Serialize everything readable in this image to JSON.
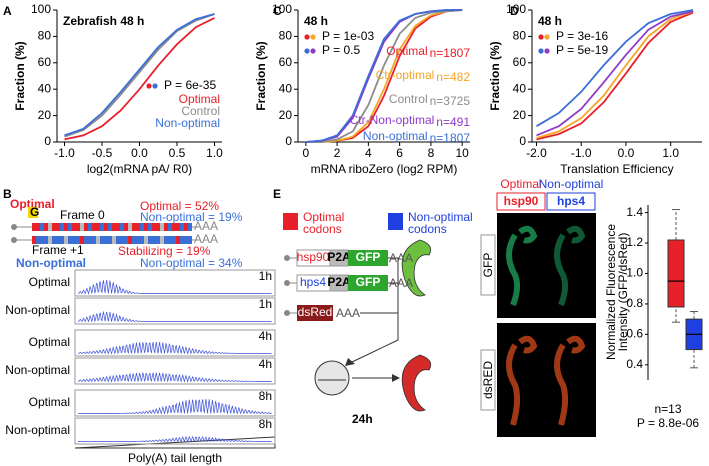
{
  "chart_data": [
    {
      "label": "A",
      "type": "line",
      "title": "Zebrafish 48 h",
      "xlabel": "log2(mRNA pA/ R0)",
      "ylabel": "Fraction (%)",
      "x": [
        -1.0,
        -0.75,
        -0.5,
        -0.25,
        0,
        0.25,
        0.5,
        0.75,
        1.0
      ],
      "xlim": [
        -1.1,
        1.1
      ],
      "xticks": [
        {
          "value": -1,
          "label": "-1.0"
        },
        {
          "value": -0.5,
          "label": "-0.5"
        },
        {
          "value": 0,
          "label": "0.0"
        },
        {
          "value": 0.5,
          "label": "0.5"
        },
        {
          "value": 1,
          "label": "1.0"
        }
      ],
      "ylim": [
        0,
        100
      ],
      "yticks": [
        0,
        20,
        40,
        60,
        80,
        100
      ],
      "annotations": [
        {
          "text": "P = 6e-35",
          "colors": [
            "#e8202a",
            "#3a6fd8"
          ]
        }
      ],
      "series": [
        {
          "name": "Optimal",
          "color": "#e8202a",
          "values": [
            2,
            5,
            12,
            24,
            40,
            58,
            74,
            87,
            94
          ]
        },
        {
          "name": "Control",
          "color": "#8c8c8c",
          "values": [
            4,
            9,
            20,
            36,
            53,
            70,
            84,
            92,
            97
          ]
        },
        {
          "name": "Non-optimal",
          "color": "#3a6fd8",
          "values": [
            5,
            10,
            22,
            38,
            55,
            72,
            85,
            93,
            97
          ]
        }
      ]
    },
    {
      "label": "C",
      "type": "line",
      "title": "48 h",
      "xlabel": "mRNA riboZero (log2 RPM)",
      "ylabel": "Fraction (%)",
      "x": [
        0,
        1,
        2,
        3,
        4,
        5,
        6,
        7,
        8,
        9,
        10
      ],
      "xlim": [
        -0.5,
        10.5
      ],
      "xticks": [
        0,
        2,
        4,
        6,
        8,
        10
      ],
      "ylim": [
        0,
        100
      ],
      "yticks": [
        0,
        20,
        40,
        60,
        80,
        100
      ],
      "annotations": [
        {
          "text": "P = 1e-03",
          "colors": [
            "#e8202a",
            "#f5a623"
          ]
        },
        {
          "text": "P = 0.5",
          "colors": [
            "#3a6fd8",
            "#8e3bc9"
          ]
        }
      ],
      "series": [
        {
          "name": "Optimal",
          "n": "n=1807",
          "color": "#e8202a",
          "values": [
            0,
            0,
            1,
            3,
            12,
            35,
            65,
            86,
            95,
            99,
            100
          ]
        },
        {
          "name": "Ctr-optimal",
          "n": "n=482",
          "color": "#f5a623",
          "values": [
            0,
            0,
            1,
            4,
            15,
            40,
            70,
            88,
            96,
            99,
            100
          ]
        },
        {
          "name": "Control",
          "n": "n=3725",
          "color": "#8c8c8c",
          "values": [
            0,
            0,
            2,
            8,
            28,
            58,
            82,
            94,
            98,
            99,
            100
          ]
        },
        {
          "name": "Ctr-Non-optimal",
          "n": "n=491",
          "color": "#8e3bc9",
          "values": [
            0,
            1,
            4,
            18,
            48,
            76,
            91,
            97,
            99,
            100,
            100
          ]
        },
        {
          "name": "Non-optimal",
          "n": "n=1807",
          "color": "#3a6fd8",
          "values": [
            0,
            1,
            5,
            20,
            50,
            78,
            92,
            97,
            99,
            100,
            100
          ]
        }
      ]
    },
    {
      "label": "D",
      "type": "line",
      "title": "48 h",
      "xlabel": "Translation Efficiency",
      "ylabel": "Fraction (%)",
      "x": [
        -2,
        -1.5,
        -1,
        -0.5,
        0,
        0.5,
        1,
        1.5
      ],
      "xlim": [
        -2.1,
        1.7
      ],
      "xticks": [
        {
          "value": -2,
          "label": "-2.0"
        },
        {
          "value": -1,
          "label": "-1.0"
        },
        {
          "value": 0,
          "label": "0.0"
        },
        {
          "value": 1,
          "label": "1.0"
        }
      ],
      "ylim": [
        0,
        100
      ],
      "yticks": [
        0,
        20,
        40,
        60,
        80,
        100
      ],
      "annotations": [
        {
          "text": "P = 3e-16",
          "colors": [
            "#e8202a",
            "#f5a623"
          ]
        },
        {
          "text": "P = 5e-19",
          "colors": [
            "#3a6fd8",
            "#8e3bc9"
          ]
        }
      ],
      "series": [
        {
          "color": "#e8202a",
          "values": [
            2,
            6,
            14,
            30,
            52,
            75,
            91,
            98
          ]
        },
        {
          "color": "#f5a623",
          "values": [
            3,
            8,
            18,
            35,
            58,
            80,
            93,
            99
          ]
        },
        {
          "color": "#8e3bc9",
          "values": [
            5,
            12,
            25,
            45,
            66,
            85,
            95,
            99
          ]
        },
        {
          "color": "#3a6fd8",
          "values": [
            12,
            22,
            38,
            58,
            76,
            90,
            97,
            100
          ]
        }
      ]
    },
    {
      "type": "box",
      "ylabel": [
        "Normalized Fluorescence",
        "Intensity (GFP/dsRed)"
      ],
      "ylim": [
        0.3,
        1.45
      ],
      "yticks": [
        0.4,
        0.6,
        0.8,
        {
          "value": 1,
          "label": "1.0"
        },
        1.2,
        1.4
      ],
      "boxes": [
        {
          "color": "#e8202a",
          "min": 0.68,
          "q1": 0.78,
          "median": 0.95,
          "q3": 1.22,
          "max": 1.42
        },
        {
          "color": "#1f3fe0",
          "min": 0.38,
          "q1": 0.5,
          "median": 0.6,
          "q3": 0.7,
          "max": 0.75
        }
      ],
      "annotations": [
        {
          "text": "n=13"
        },
        {
          "text": "P = 8.8e-06"
        }
      ]
    }
  ],
  "panel_b": {
    "label": "B",
    "optimal": "Optimal",
    "non_optimal": "Non-optimal",
    "g": "G",
    "frame0": "Frame 0",
    "frame1": "Frame +1",
    "tail": "AAA",
    "stats": [
      "Optimal = 52%",
      "Non-optimal = 19%",
      "Stabilizing = 19%",
      "Non-optimal = 34%"
    ],
    "rows": [
      {
        "label": "Optimal",
        "time": "1h"
      },
      {
        "label": "Non-optimal",
        "time": "1h"
      },
      {
        "label": "Optimal",
        "time": "4h"
      },
      {
        "label": "Non-optimal",
        "time": "4h"
      },
      {
        "label": "Optimal",
        "time": "8h"
      },
      {
        "label": "Non-optimal",
        "time": "8h"
      }
    ],
    "xlabel": "Poly(A) tail length"
  },
  "panel_e": {
    "label": "E",
    "legend": [
      [
        "Optimal",
        "codons"
      ],
      [
        "Non-optimal",
        "codons"
      ]
    ],
    "constructs": [
      {
        "gene": "hsp90",
        "p2a": "P2A",
        "reporter": "GFP",
        "tail": "AAA"
      },
      {
        "gene": "hps4",
        "p2a": "P2A",
        "reporter": "GFP",
        "tail": "AAA"
      },
      {
        "gene": "dsRed",
        "tail": "AAA"
      }
    ],
    "time": "24h",
    "columns": [
      {
        "group": "Optimal",
        "gene": "hsp90"
      },
      {
        "group": "Non-optimal",
        "gene": "hps4"
      }
    ],
    "rows": [
      "GFP",
      "dsRED"
    ]
  }
}
